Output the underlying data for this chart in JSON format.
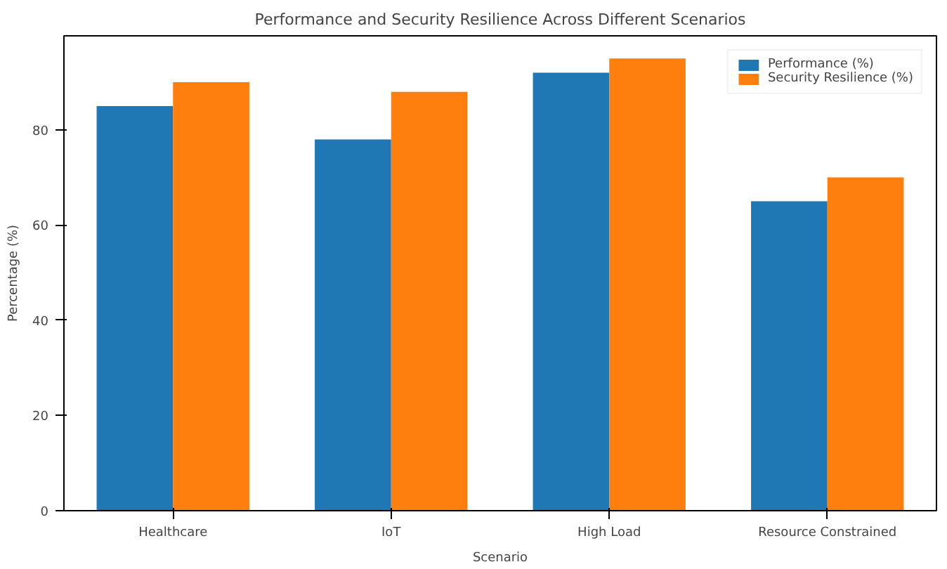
{
  "chart_data": {
    "type": "bar",
    "title": "Performance and Security Resilience Across Different Scenarios",
    "xlabel": "Scenario",
    "ylabel": "Percentage (%)",
    "categories": [
      "Healthcare",
      "IoT",
      "High Load",
      "Resource Constrained"
    ],
    "series": [
      {
        "name": "Performance (%)",
        "color": "#1f77b4",
        "values": [
          85,
          78,
          92,
          65
        ]
      },
      {
        "name": "Security Resilience (%)",
        "color": "#ff7f0e",
        "values": [
          90,
          88,
          95,
          70
        ]
      }
    ],
    "ylim": [
      0,
      99.75
    ],
    "yticks": [
      0,
      20,
      40,
      60,
      80
    ],
    "legend": "top right",
    "grid": false
  }
}
